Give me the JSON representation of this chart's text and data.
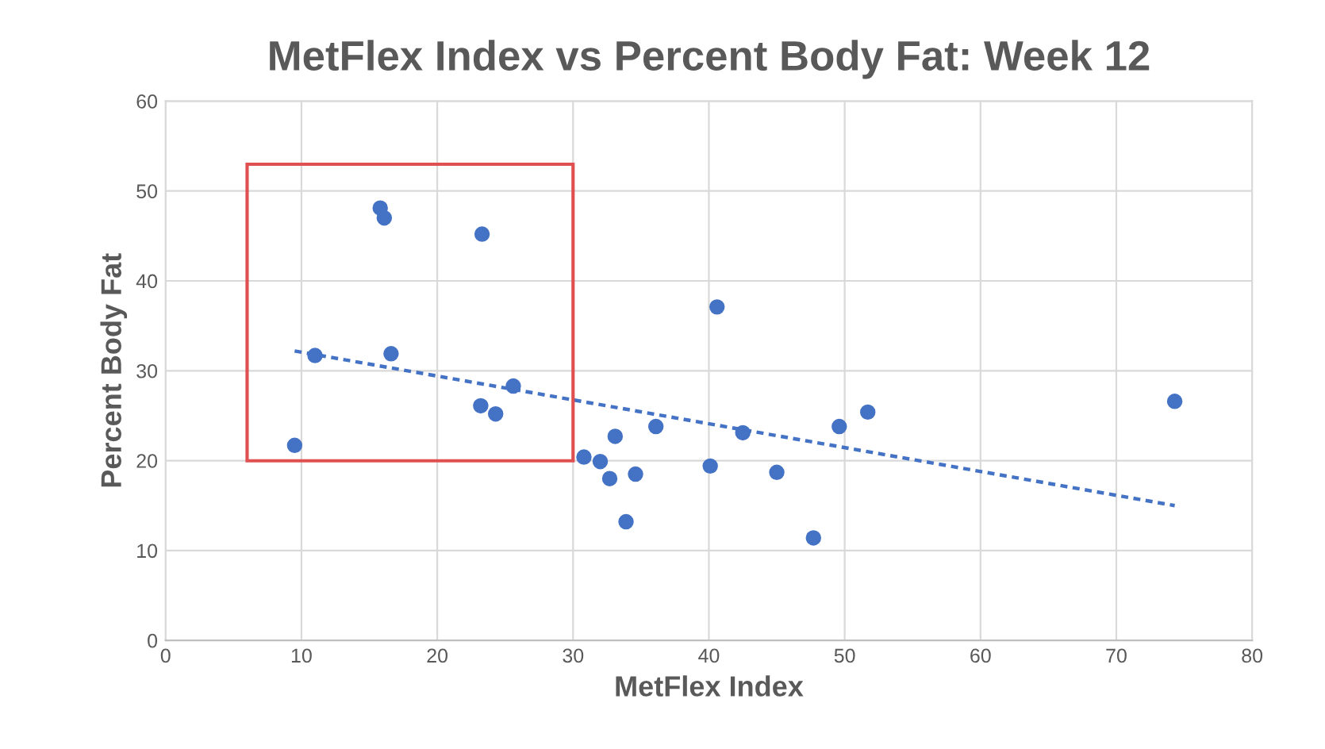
{
  "chart_data": {
    "type": "scatter",
    "title": "MetFlex Index vs Percent Body Fat: Week 12",
    "xlabel": "MetFlex Index",
    "ylabel": "Percent Body Fat",
    "series": [
      {
        "color": "#4472c4",
        "marker": "circle",
        "x": [
          9.5,
          11.0,
          15.8,
          16.1,
          16.6,
          23.3,
          23.2,
          24.3,
          25.6,
          30.8,
          32.0,
          32.7,
          33.1,
          33.9,
          34.6,
          36.1,
          40.1,
          40.6,
          42.5,
          45.0,
          47.7,
          49.6,
          51.7,
          74.3
        ],
        "values": [
          21.7,
          31.7,
          48.1,
          47.0,
          31.9,
          45.2,
          26.1,
          25.2,
          28.3,
          20.4,
          19.9,
          18.0,
          22.7,
          13.2,
          18.5,
          23.8,
          19.4,
          37.1,
          23.1,
          18.7,
          11.4,
          23.8,
          25.4,
          26.6
        ]
      },
      {
        "type": "line",
        "color": "#4472c4",
        "line_style": "dotted",
        "marker": "none",
        "x": [
          9.5,
          74.3
        ],
        "values": [
          32.2,
          15.0
        ]
      }
    ],
    "xlim": [
      0,
      80
    ],
    "xticks": [
      0,
      10,
      20,
      30,
      40,
      50,
      60,
      70,
      80
    ],
    "ylim": [
      0,
      60
    ],
    "yticks": [
      0,
      10,
      20,
      30,
      40,
      50,
      60
    ],
    "grid": true,
    "legend": false
  }
}
